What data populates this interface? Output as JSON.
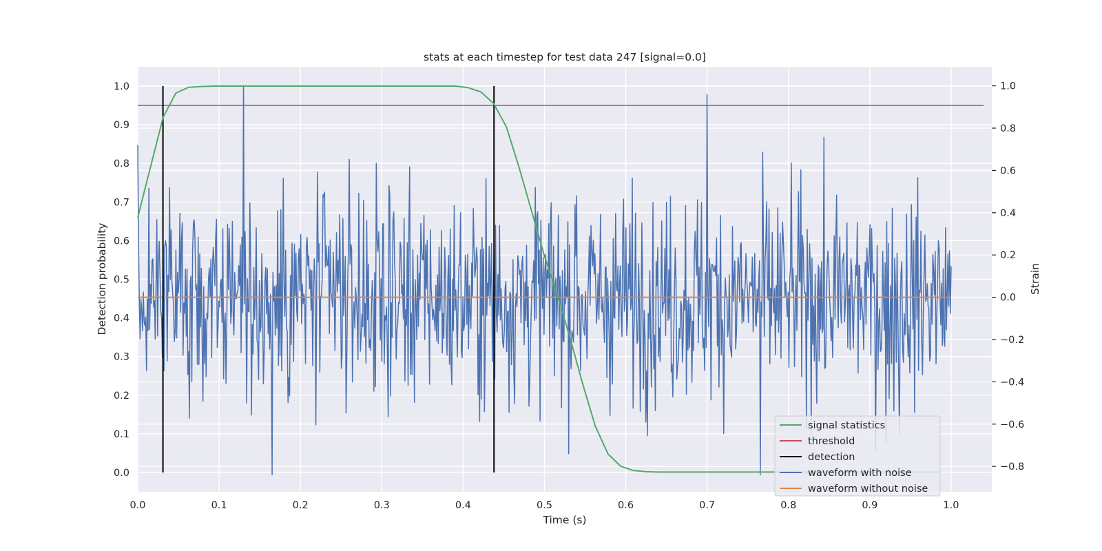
{
  "chart_data": {
    "type": "line",
    "title": "stats at each timestep for test data 247 [signal=0.0]",
    "xlabel": "Time (s)",
    "ylabel": "Detection probability",
    "y2label": "Strain",
    "xlim": [
      0.0,
      1.05
    ],
    "ylim": [
      -0.05,
      1.05
    ],
    "y2lim": [
      -0.92,
      1.09
    ],
    "xticks": [
      "0.0",
      "0.1",
      "0.2",
      "0.3",
      "0.4",
      "0.5",
      "0.6",
      "0.7",
      "0.8",
      "0.9",
      "1.0"
    ],
    "yticks": [
      "0.0",
      "0.1",
      "0.2",
      "0.3",
      "0.4",
      "0.5",
      "0.6",
      "0.7",
      "0.8",
      "0.9",
      "1.0"
    ],
    "y2ticks": [
      "−0.8",
      "−0.6",
      "−0.4",
      "−0.2",
      "0.0",
      "0.2",
      "0.4",
      "0.6",
      "0.8",
      "1.0"
    ],
    "grid": true,
    "legend_position": "lower-right",
    "series": [
      {
        "name": "signal statistics",
        "color": "#55a868",
        "axis": "left",
        "x": [
          0.0,
          0.0156,
          0.0313,
          0.0469,
          0.0625,
          0.0781,
          0.0938,
          0.1094,
          0.125,
          0.1406,
          0.1563,
          0.1719,
          0.1875,
          0.2031,
          0.2188,
          0.2344,
          0.25,
          0.2656,
          0.2813,
          0.2969,
          0.3125,
          0.3281,
          0.3438,
          0.3594,
          0.375,
          0.3906,
          0.4063,
          0.4219,
          0.4375,
          0.4531,
          0.4688,
          0.4844,
          0.5,
          0.5156,
          0.5313,
          0.5469,
          0.5625,
          0.5781,
          0.5938,
          0.6094,
          0.625,
          0.6406,
          0.6563,
          0.6719,
          0.6875,
          0.7031,
          0.7188,
          0.7344,
          0.75,
          0.7656,
          0.7813,
          0.7969,
          0.8125,
          0.8281,
          0.8438,
          0.8594,
          0.875,
          0.8906,
          0.9063,
          0.9219,
          0.9375,
          0.9531,
          0.9688,
          0.9844
        ],
        "values": [
          0.66,
          0.79,
          0.92,
          0.982,
          0.997,
          0.999,
          1.0,
          1.0,
          1.0,
          1.0,
          1.0,
          1.0,
          1.0,
          1.0,
          1.0,
          1.0,
          1.0,
          1.0,
          1.0,
          1.0,
          1.0,
          1.0,
          1.0,
          1.0,
          1.0,
          1.0,
          0.996,
          0.985,
          0.955,
          0.895,
          0.79,
          0.675,
          0.56,
          0.46,
          0.35,
          0.23,
          0.12,
          0.048,
          0.016,
          0.005,
          0.002,
          0.001,
          0.001,
          0.001,
          0.001,
          0.001,
          0.001,
          0.001,
          0.001,
          0.001,
          0.001,
          0.001,
          0.001,
          0.001,
          0.001,
          0.001,
          0.001,
          0.001,
          0.001,
          0.001,
          0.001,
          0.001,
          0.001,
          0.001
        ]
      },
      {
        "name": "threshold",
        "color": "#c44e52",
        "axis": "left",
        "x": [
          0.0,
          1.04
        ],
        "values": [
          0.95,
          0.95
        ]
      },
      {
        "name": "detection",
        "color": "#000000",
        "axis": "left",
        "vlines": [
          0.031,
          0.438
        ],
        "range": [
          0.0,
          1.0
        ]
      },
      {
        "name": "waveform with noise",
        "color": "#4c72b0",
        "axis": "right",
        "x_range": [
          0.0,
          1.0
        ],
        "n_points": 1024,
        "rms": 0.24,
        "peaks": [
          [
            0.0,
            0.72
          ],
          [
            0.13,
            1.0
          ],
          [
            0.165,
            -0.84
          ],
          [
            0.7,
            0.96
          ],
          [
            0.765,
            -0.84
          ],
          [
            0.92,
            -0.69
          ],
          [
            0.936,
            -0.65
          ],
          [
            0.31,
            0.48
          ],
          [
            0.54,
            0.48
          ]
        ]
      },
      {
        "name": "waveform without noise",
        "color": "#dd8452",
        "axis": "right",
        "x": [
          0.0,
          1.0
        ],
        "values": [
          0.0,
          0.0
        ]
      }
    ]
  }
}
